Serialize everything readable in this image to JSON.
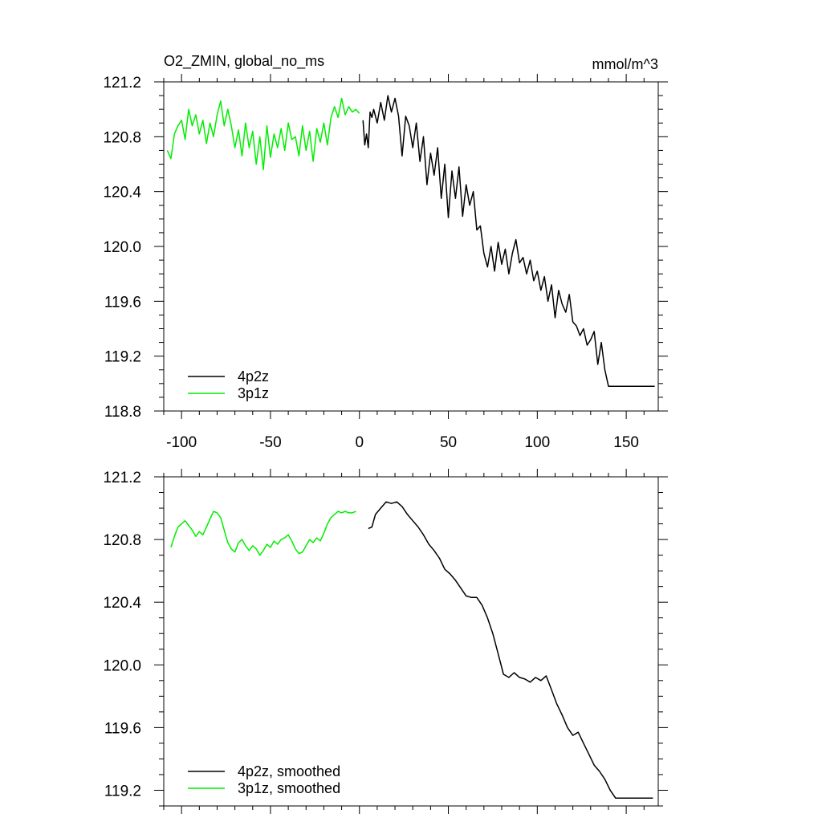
{
  "title_left": "O2_ZMIN, global_no_ms",
  "title_right": "mmol/m^3",
  "colors": {
    "series_4p2z": "#000000",
    "series_3p1z": "#00ee00"
  },
  "chart_data": [
    {
      "type": "line",
      "panel": "top",
      "xlim": [
        -110,
        168
      ],
      "ylim": [
        118.8,
        121.2
      ],
      "x_ticks": [
        -100,
        -50,
        0,
        50,
        100,
        150
      ],
      "x_tick_labels": [
        "-100",
        "-50",
        "0",
        "50",
        "100",
        "150"
      ],
      "y_ticks": [
        118.8,
        119.2,
        119.6,
        120.0,
        120.4,
        120.8,
        121.2
      ],
      "y_tick_labels": [
        "118.8",
        "119.2",
        "119.6",
        "120.0",
        "120.4",
        "120.8",
        "121.2"
      ],
      "legend": "bottom-left",
      "series": [
        {
          "name": "4p2z",
          "color": "#000000",
          "x": [
            2,
            3,
            4,
            5,
            6,
            7,
            8,
            10,
            12,
            14,
            16,
            18,
            20,
            22,
            24,
            26,
            28,
            30,
            32,
            34,
            36,
            38,
            40,
            42,
            44,
            46,
            48,
            50,
            52,
            54,
            56,
            58,
            60,
            62,
            64,
            66,
            68,
            70,
            72,
            74,
            76,
            78,
            80,
            82,
            84,
            86,
            88,
            90,
            92,
            94,
            96,
            98,
            100,
            102,
            104,
            106,
            108,
            110,
            112,
            114,
            116,
            118,
            120,
            122,
            124,
            126,
            128,
            130,
            132,
            134,
            136,
            138,
            140,
            142,
            144,
            146,
            148,
            150,
            152,
            154,
            156,
            158,
            160,
            162,
            164,
            166,
            168
          ],
          "values": [
            120.92,
            120.74,
            120.82,
            120.72,
            120.98,
            120.94,
            121.0,
            120.9,
            121.05,
            120.92,
            121.1,
            120.98,
            121.08,
            120.95,
            120.66,
            120.95,
            120.88,
            120.72,
            120.9,
            120.62,
            120.8,
            120.45,
            120.68,
            120.52,
            120.72,
            120.35,
            120.6,
            120.21,
            120.55,
            120.35,
            120.58,
            120.22,
            120.45,
            120.3,
            120.4,
            120.12,
            120.15,
            119.95,
            119.85,
            120.0,
            119.82,
            120.03,
            119.87,
            119.98,
            119.8,
            119.95,
            120.05,
            119.88,
            119.92,
            119.8,
            119.9,
            119.75,
            119.82,
            119.68,
            119.78,
            119.6,
            119.72,
            119.48,
            119.68,
            119.58,
            119.52,
            119.65,
            119.45,
            119.42,
            119.35,
            119.4,
            119.28,
            119.32,
            119.38,
            119.14,
            119.3,
            119.1,
            118.98,
            118.98,
            118.98,
            118.98,
            118.98,
            118.98,
            118.98,
            118.98,
            118.98,
            118.98,
            118.98,
            118.98,
            118.98,
            118.98,
            118.98
          ],
          "note_end_x": 167
        },
        {
          "name": "3p1z",
          "color": "#00ee00",
          "x": [
            -108,
            -106,
            -104,
            -102,
            -100,
            -98,
            -96,
            -94,
            -92,
            -90,
            -88,
            -86,
            -84,
            -82,
            -80,
            -78,
            -76,
            -74,
            -72,
            -70,
            -68,
            -66,
            -64,
            -62,
            -60,
            -58,
            -56,
            -54,
            -52,
            -50,
            -48,
            -46,
            -44,
            -42,
            -40,
            -38,
            -36,
            -34,
            -32,
            -30,
            -28,
            -26,
            -24,
            -22,
            -20,
            -18,
            -16,
            -14,
            -12,
            -10,
            -8,
            -6,
            -4,
            -2,
            0
          ],
          "values": [
            120.7,
            120.64,
            120.82,
            120.88,
            120.92,
            120.78,
            121.0,
            120.88,
            120.96,
            120.82,
            120.92,
            120.75,
            120.9,
            120.8,
            120.96,
            121.06,
            120.88,
            121.0,
            120.88,
            120.72,
            120.85,
            120.66,
            120.9,
            120.72,
            120.84,
            120.6,
            120.8,
            120.56,
            120.88,
            120.65,
            120.82,
            120.72,
            120.86,
            120.7,
            120.9,
            120.78,
            120.8,
            120.66,
            120.88,
            120.7,
            120.84,
            120.62,
            120.86,
            120.76,
            120.9,
            120.74,
            120.94,
            121.02,
            120.94,
            121.08,
            120.96,
            121.02,
            120.98,
            121.0,
            120.97
          ]
        }
      ]
    },
    {
      "type": "line",
      "panel": "bottom",
      "xlim": [
        -110,
        168
      ],
      "ylim": [
        119.1,
        121.2
      ],
      "y_ticks": [
        119.2,
        119.6,
        120.0,
        120.4,
        120.8,
        121.2
      ],
      "y_tick_labels": [
        "119.2",
        "119.6",
        "120.0",
        "120.4",
        "120.8",
        "121.2"
      ],
      "legend": "bottom-left",
      "series": [
        {
          "name": "4p2z, smoothed",
          "color": "#000000",
          "x": [
            5,
            7,
            9,
            12,
            15,
            18,
            21,
            24,
            27,
            30,
            33,
            36,
            39,
            42,
            45,
            48,
            51,
            54,
            57,
            60,
            63,
            66,
            69,
            72,
            75,
            78,
            81,
            84,
            87,
            90,
            93,
            96,
            99,
            102,
            105,
            108,
            111,
            114,
            117,
            120,
            123,
            126,
            129,
            132,
            135,
            138,
            141,
            144,
            147,
            150,
            153,
            156,
            159,
            162,
            165,
            166
          ],
          "values": [
            120.87,
            120.88,
            120.96,
            121.0,
            121.04,
            121.03,
            121.04,
            121.01,
            120.96,
            120.92,
            120.88,
            120.83,
            120.77,
            120.73,
            120.68,
            120.61,
            120.58,
            120.54,
            120.49,
            120.44,
            120.43,
            120.43,
            120.38,
            120.3,
            120.2,
            120.07,
            119.94,
            119.92,
            119.95,
            119.92,
            119.91,
            119.89,
            119.92,
            119.9,
            119.93,
            119.84,
            119.75,
            119.68,
            119.6,
            119.55,
            119.57,
            119.5,
            119.43,
            119.36,
            119.32,
            119.27,
            119.2,
            119.15,
            119.15,
            119.15,
            119.15,
            119.15,
            119.15,
            119.15,
            119.15,
            119.15
          ],
          "note_end_x": 165
        },
        {
          "name": "3p1z, smoothed",
          "color": "#00ee00",
          "x": [
            -106,
            -104,
            -102,
            -100,
            -98,
            -96,
            -94,
            -92,
            -90,
            -88,
            -86,
            -84,
            -82,
            -80,
            -78,
            -76,
            -74,
            -72,
            -70,
            -68,
            -66,
            -64,
            -62,
            -60,
            -58,
            -56,
            -54,
            -52,
            -50,
            -48,
            -46,
            -44,
            -42,
            -40,
            -38,
            -36,
            -34,
            -32,
            -30,
            -28,
            -26,
            -24,
            -22,
            -20,
            -18,
            -16,
            -14,
            -12,
            -10,
            -8,
            -6,
            -4,
            -2
          ],
          "values": [
            120.75,
            120.82,
            120.88,
            120.9,
            120.92,
            120.89,
            120.86,
            120.82,
            120.85,
            120.83,
            120.88,
            120.93,
            120.98,
            120.97,
            120.94,
            120.86,
            120.78,
            120.74,
            120.72,
            120.78,
            120.8,
            120.76,
            120.73,
            120.76,
            120.74,
            120.7,
            120.73,
            120.77,
            120.75,
            120.79,
            120.77,
            120.8,
            120.81,
            120.83,
            120.79,
            120.74,
            120.71,
            120.72,
            120.76,
            120.8,
            120.78,
            120.81,
            120.79,
            120.84,
            120.9,
            120.94,
            120.96,
            120.98,
            120.97,
            120.98,
            120.97,
            120.97,
            120.98
          ]
        }
      ]
    }
  ]
}
